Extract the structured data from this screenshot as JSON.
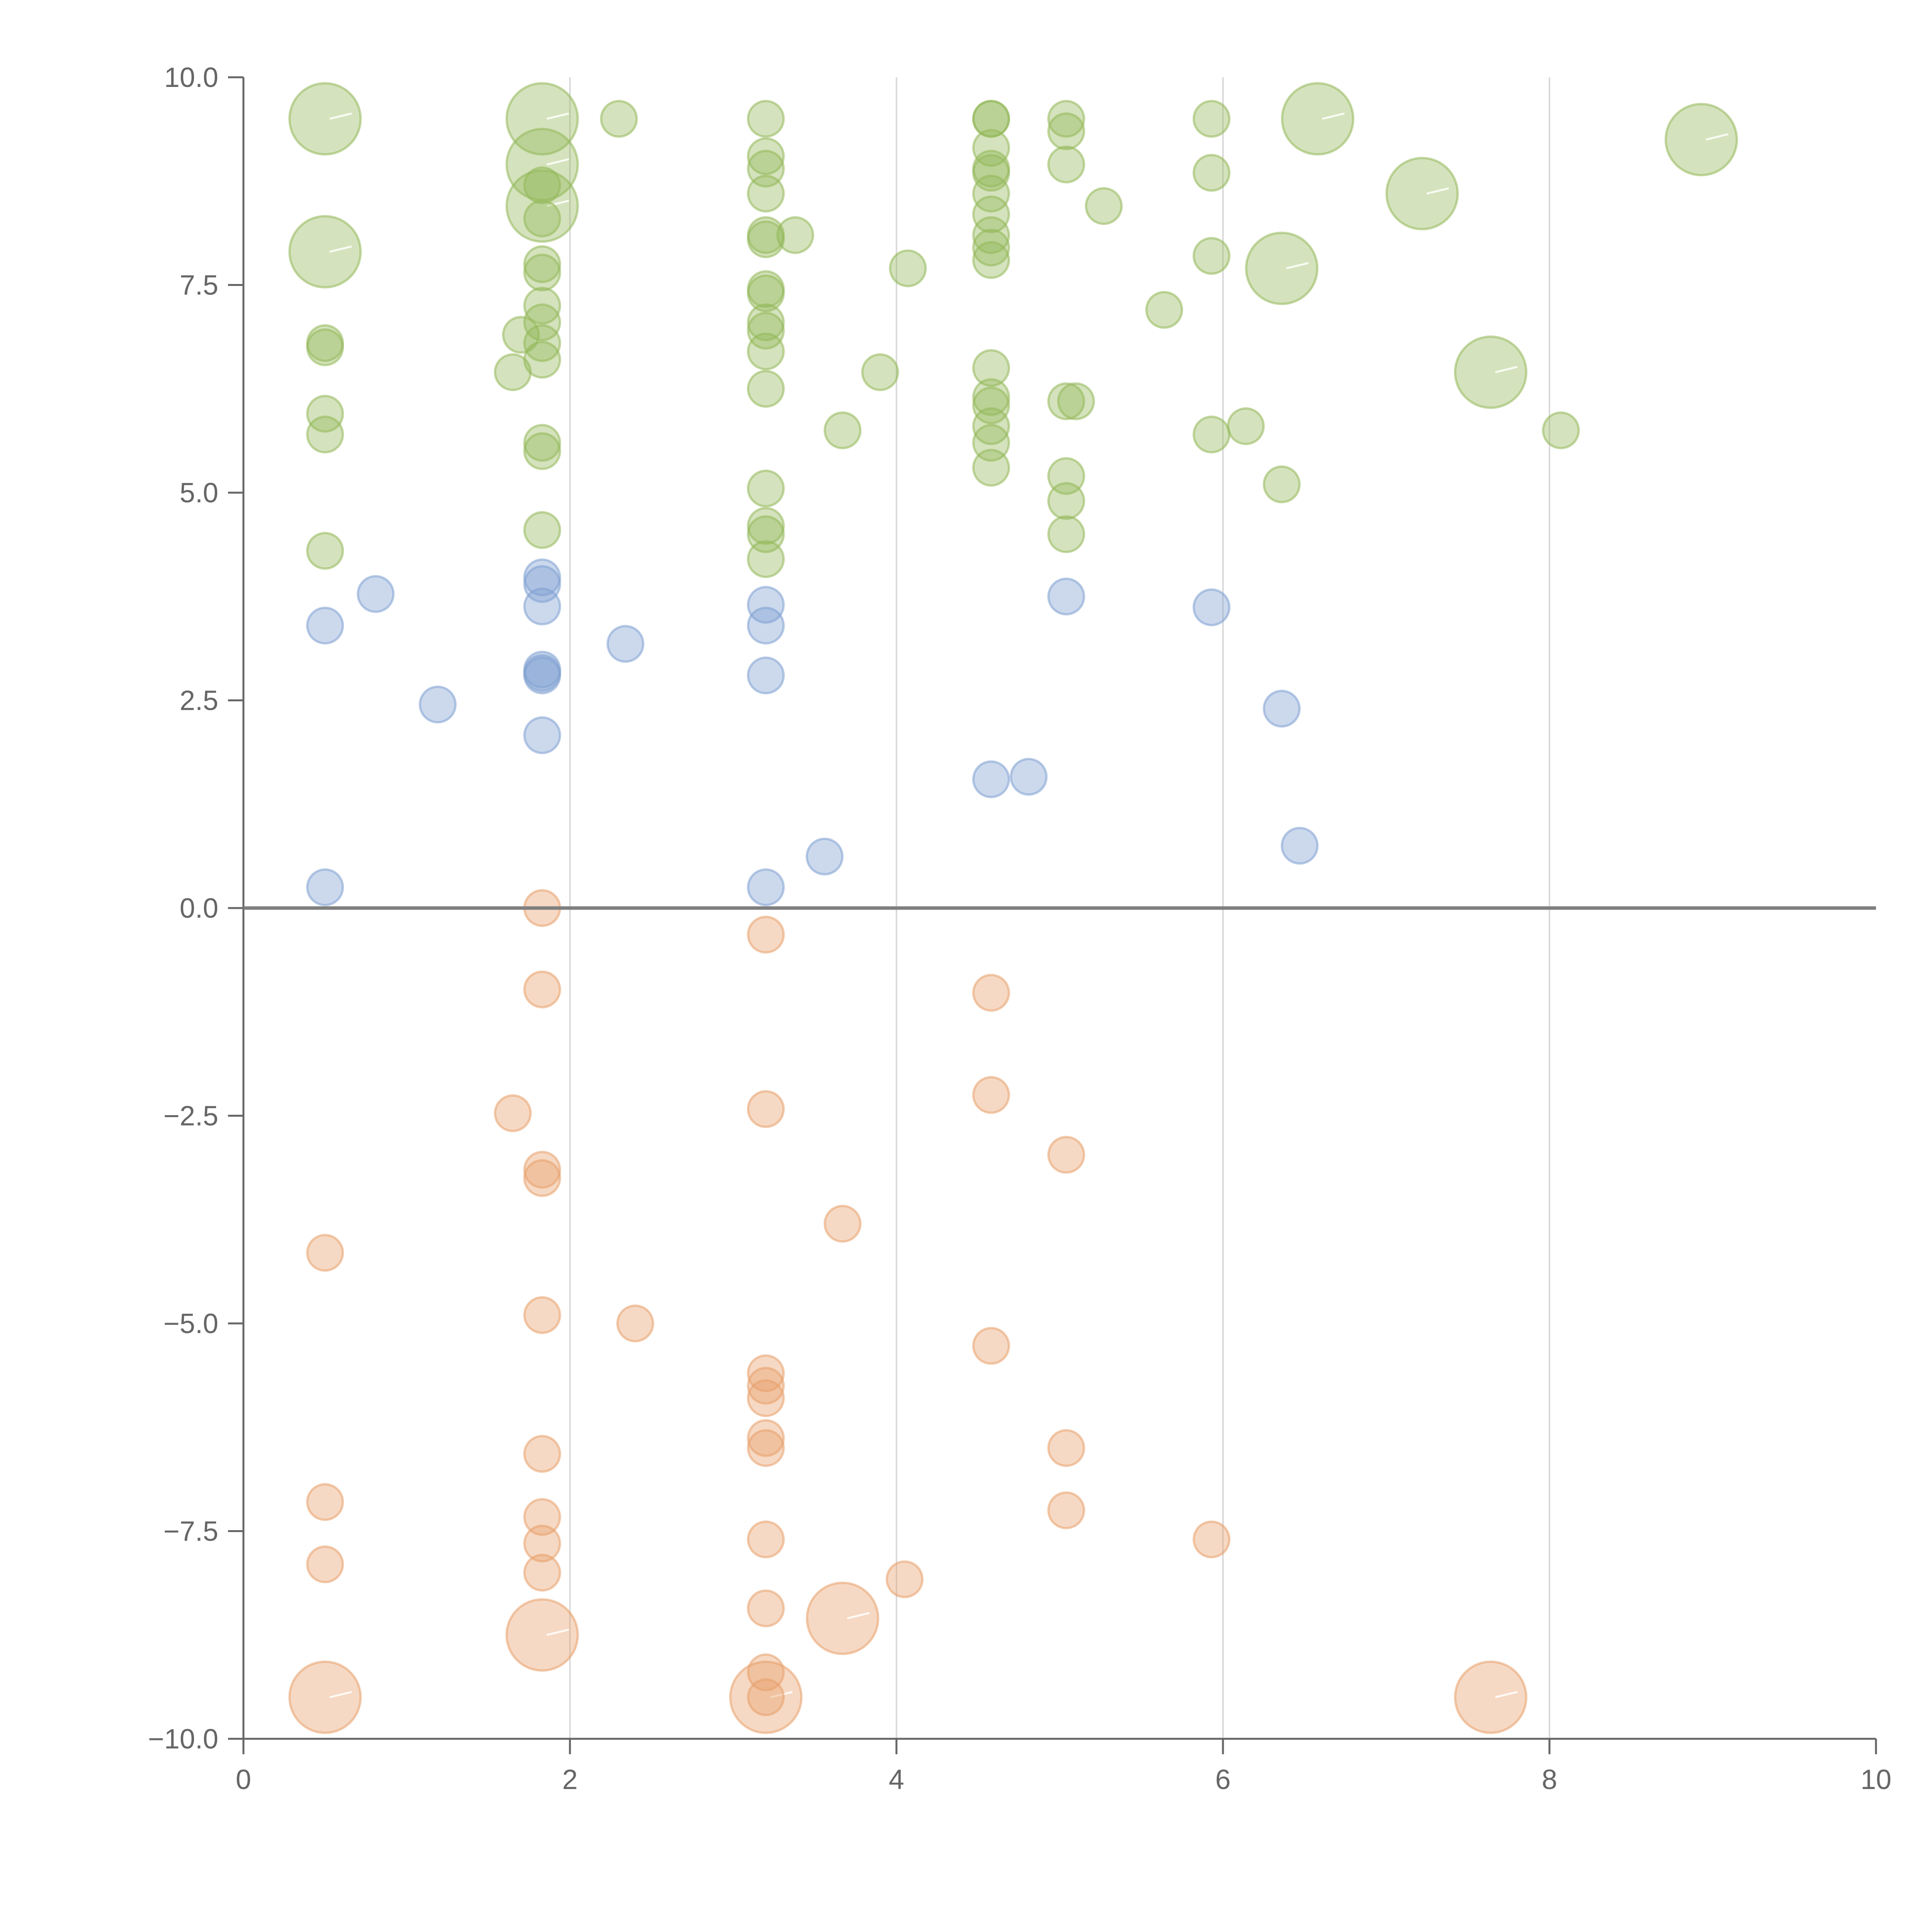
{
  "chart_data": {
    "type": "scatter",
    "title": "",
    "xlabel": "",
    "ylabel": "",
    "xlim": [
      0,
      10
    ],
    "ylim": [
      -10,
      10
    ],
    "xticks": [
      0,
      2,
      4,
      6,
      8,
      10
    ],
    "yticks": [
      -10,
      -7.5,
      -5,
      -2.5,
      0,
      2.5,
      5,
      7.5,
      10
    ],
    "x_tick_labels": [
      "0",
      "2",
      "4",
      "6",
      "8",
      "10"
    ],
    "y_tick_labels": [
      "−10.0",
      "−7.5",
      "−5.0",
      "−2.5",
      "0.0",
      "2.5",
      "5.0",
      "7.5",
      "10.0"
    ],
    "grid": "vertical",
    "zero_line": true,
    "colors": {
      "green": "#93b85a",
      "blue": "#7fa0d1",
      "orange": "#e8a06b",
      "axis": "#666666",
      "gridline": "#d9d9d9",
      "zero_line": "#7f7f7f"
    },
    "series": [
      {
        "color": "#93b85a",
        "x": [
          0.5,
          0.5,
          0.5,
          0.5,
          0.5,
          0.5,
          0.5,
          1.83,
          1.83,
          1.83,
          1.83,
          1.83,
          1.83,
          1.83,
          1.83,
          1.83,
          1.83,
          1.83,
          1.83,
          1.83,
          1.83,
          1.7,
          1.65,
          2.3,
          3.2,
          3.2,
          3.2,
          3.2,
          3.2,
          3.2,
          3.2,
          3.2,
          3.2,
          3.2,
          3.2,
          3.2,
          3.2,
          3.2,
          3.2,
          3.2,
          3.38,
          3.67,
          3.9,
          4.07,
          4.58,
          4.58,
          4.58,
          4.58,
          4.58,
          4.58,
          4.58,
          4.58,
          4.58,
          4.58,
          4.58,
          4.58,
          4.58,
          4.58,
          4.58,
          4.58,
          5.04,
          5.04,
          5.04,
          5.04,
          5.04,
          5.04,
          5.04,
          5.1,
          5.27,
          5.64,
          5.93,
          5.93,
          5.93,
          5.93,
          6.14,
          6.36,
          6.36,
          6.58,
          7.22,
          7.64,
          8.07,
          8.93
        ],
        "y": [
          9.5,
          7.9,
          6.8,
          6.75,
          5.95,
          5.7,
          4.3,
          9.5,
          8.95,
          8.45,
          8.7,
          8.3,
          7.75,
          7.65,
          7.05,
          6.8,
          6.6,
          5.6,
          5.5,
          4.55,
          7.25,
          6.9,
          6.45,
          9.5,
          9.5,
          9.05,
          8.9,
          8.6,
          8.1,
          8.05,
          7.45,
          7.4,
          7.05,
          6.95,
          6.7,
          6.25,
          5.05,
          4.6,
          4.5,
          4.2,
          8.1,
          5.75,
          6.45,
          7.7,
          9.5,
          9.5,
          9.15,
          8.9,
          8.85,
          8.6,
          8.35,
          8.1,
          7.95,
          7.8,
          6.5,
          6.15,
          6.05,
          5.8,
          5.6,
          5.3,
          9.5,
          9.35,
          8.95,
          5.2,
          4.9,
          4.5,
          6.1,
          6.1,
          8.45,
          7.2,
          9.5,
          8.85,
          7.85,
          5.7,
          5.8,
          5.1,
          7.7,
          9.5,
          8.6,
          6.45,
          5.75,
          9.25
        ],
        "size": [
          1,
          1,
          0,
          0,
          0,
          0,
          0,
          1,
          1,
          1,
          0,
          0,
          0,
          0,
          0,
          0,
          0,
          0,
          0,
          0,
          0,
          0,
          0,
          0,
          0,
          0,
          0,
          0,
          0,
          0,
          0,
          0,
          0,
          0,
          0,
          0,
          0,
          0,
          0,
          0,
          0,
          0,
          0,
          0,
          0,
          0,
          0,
          0,
          0,
          0,
          0,
          0,
          0,
          0,
          0,
          0,
          0,
          0,
          0,
          0,
          0,
          0,
          0,
          0,
          0,
          0,
          0,
          0,
          0,
          0,
          0,
          0,
          0,
          0,
          0,
          0,
          1,
          1,
          1,
          1,
          0,
          1
        ]
      },
      {
        "color": "#7fa0d1",
        "x": [
          0.5,
          0.5,
          0.81,
          1.19,
          1.83,
          1.83,
          1.83,
          1.83,
          1.83,
          1.83,
          1.83,
          2.34,
          3.2,
          3.2,
          3.2,
          3.2,
          3.56,
          4.58,
          4.81,
          5.04,
          5.93,
          6.36,
          6.47
        ],
        "y": [
          3.4,
          0.25,
          3.78,
          2.45,
          3.98,
          3.9,
          3.63,
          2.87,
          2.83,
          2.8,
          2.08,
          3.18,
          3.65,
          3.4,
          2.8,
          0.25,
          0.62,
          1.55,
          1.58,
          3.75,
          3.62,
          2.4,
          0.75
        ],
        "size": [
          0,
          0,
          0,
          0,
          0,
          0,
          0,
          0,
          0,
          0,
          0,
          0,
          0,
          0,
          0,
          0,
          0,
          0,
          0,
          0,
          0,
          0,
          0
        ]
      },
      {
        "color": "#e8a06b",
        "x": [
          0.5,
          0.5,
          0.5,
          0.5,
          1.83,
          1.83,
          1.65,
          1.83,
          1.83,
          1.83,
          1.83,
          1.83,
          1.83,
          1.83,
          1.83,
          2.4,
          3.2,
          3.2,
          3.2,
          3.2,
          3.2,
          3.2,
          3.2,
          3.2,
          3.2,
          3.2,
          3.2,
          3.2,
          3.67,
          3.67,
          4.05,
          4.58,
          4.58,
          4.58,
          5.04,
          5.04,
          5.04,
          5.93,
          7.64
        ],
        "y": [
          -4.15,
          -7.15,
          -7.9,
          -9.5,
          0.0,
          -0.98,
          -2.47,
          -3.15,
          -3.25,
          -4.9,
          -6.57,
          -7.33,
          -7.65,
          -8.0,
          -8.75,
          -5.0,
          -0.32,
          -2.42,
          -5.6,
          -5.75,
          -5.9,
          -6.38,
          -6.5,
          -7.6,
          -8.43,
          -9.2,
          -9.5,
          -9.5,
          -3.8,
          -8.55,
          -8.08,
          -1.02,
          -2.25,
          -5.27,
          -2.97,
          -6.5,
          -7.25,
          -7.6,
          -9.5
        ],
        "size": [
          0,
          0,
          0,
          1,
          0,
          0,
          0,
          0,
          0,
          0,
          0,
          0,
          0,
          0,
          1,
          0,
          0,
          0,
          0,
          0,
          0,
          0,
          0,
          0,
          0,
          0,
          1,
          0,
          0,
          1,
          0,
          0,
          0,
          0,
          0,
          0,
          0,
          0,
          1
        ]
      }
    ]
  }
}
